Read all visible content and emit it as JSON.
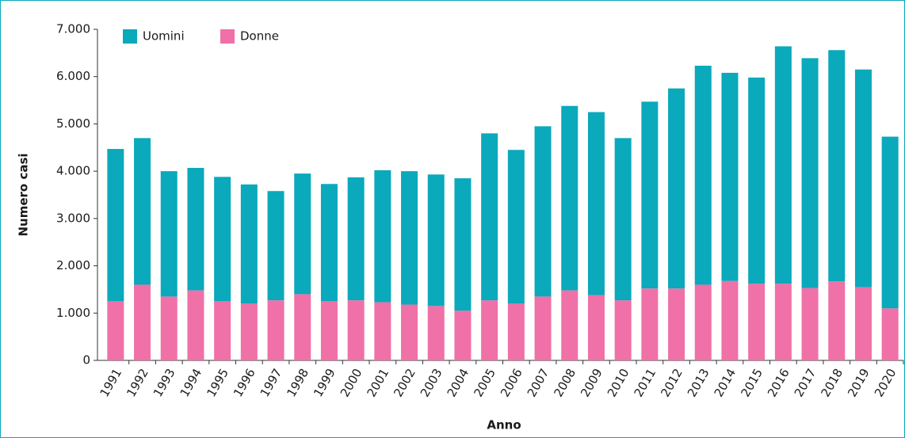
{
  "chart_data": {
    "type": "bar",
    "stacked": true,
    "x_label": "Anno",
    "y_label": "Numero casi",
    "categories": [
      "1991",
      "1992",
      "1993",
      "1994",
      "1995",
      "1996",
      "1997",
      "1998",
      "1999",
      "2000",
      "2001",
      "2002",
      "2003",
      "2004",
      "2005",
      "2006",
      "2007",
      "2008",
      "2009",
      "2010",
      "2011",
      "2012",
      "2013",
      "2014",
      "2015",
      "2016",
      "2017",
      "2018",
      "2019",
      "2020"
    ],
    "series": [
      {
        "name": "Uomini",
        "color": "#0aa9bb",
        "values": [
          3220,
          3100,
          2650,
          2590,
          2630,
          2520,
          2310,
          2550,
          2480,
          2600,
          2790,
          2820,
          2780,
          2800,
          3530,
          3250,
          3600,
          3900,
          3870,
          3430,
          3950,
          4230,
          4630,
          4400,
          4360,
          5020,
          4860,
          4890,
          4600,
          3630
        ]
      },
      {
        "name": "Donne",
        "color": "#f070a8",
        "values": [
          1250,
          1600,
          1350,
          1480,
          1250,
          1200,
          1270,
          1400,
          1250,
          1270,
          1230,
          1180,
          1150,
          1050,
          1270,
          1200,
          1350,
          1480,
          1380,
          1270,
          1520,
          1520,
          1600,
          1680,
          1620,
          1620,
          1530,
          1670,
          1550,
          1100
        ]
      }
    ],
    "ylim": [
      0,
      7000
    ],
    "yticks": [
      0,
      {
        "value": 1000,
        "label": "1.000"
      },
      {
        "value": 2000,
        "label": "2.000"
      },
      {
        "value": 3000,
        "label": "3.000"
      },
      {
        "value": 4000,
        "label": "4.000"
      },
      {
        "value": 5000,
        "label": "5.000"
      },
      {
        "value": 6000,
        "label": "6.000"
      },
      {
        "value": 7000,
        "label": "7.000"
      }
    ],
    "legend": "top-left",
    "grid": false
  }
}
